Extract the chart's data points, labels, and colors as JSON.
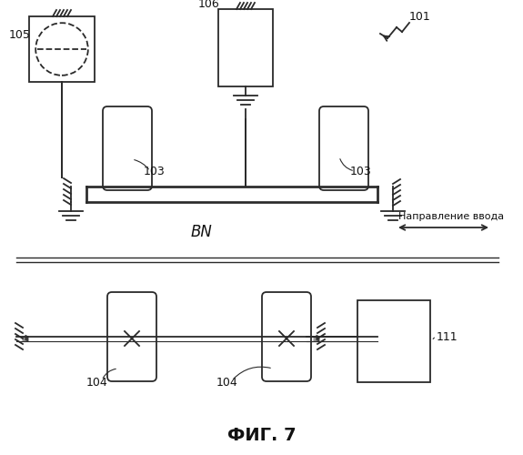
{
  "bg_color": "#ffffff",
  "line_color": "#2a2a2a",
  "text_color": "#111111",
  "label_101": "101",
  "label_103a": "103",
  "label_103b": "103",
  "label_104a": "104",
  "label_104b": "104",
  "label_105": "105",
  "label_106": "106",
  "label_111": "111",
  "label_BN": "BN",
  "direction_label": "Направление ввода",
  "title": "ФИГ. 7"
}
